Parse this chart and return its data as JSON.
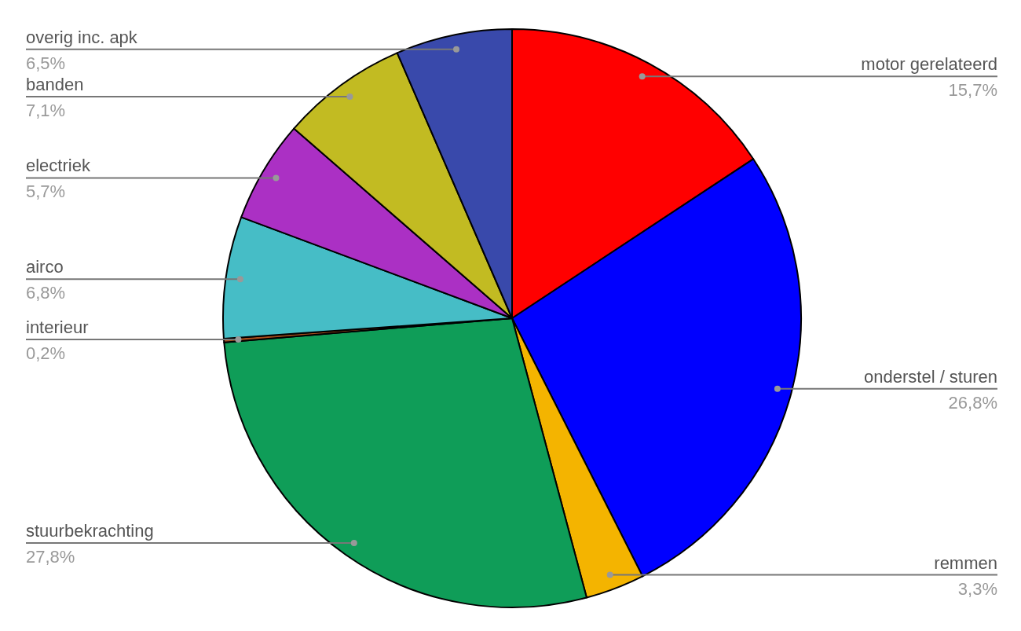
{
  "chart_data": {
    "type": "pie",
    "categories": [
      "motor gerelateerd",
      "onderstel / sturen",
      "remmen",
      "stuurbekrachting",
      "interieur",
      "airco",
      "electriek",
      "banden",
      "overig inc. apk"
    ],
    "values": [
      15.7,
      26.8,
      3.3,
      27.8,
      0.2,
      6.8,
      5.7,
      7.1,
      6.5
    ],
    "value_labels": [
      "15,7%",
      "26,8%",
      "3,3%",
      "27,8%",
      "0,2%",
      "6,8%",
      "5,7%",
      "7,1%",
      "6,5%"
    ],
    "colors": [
      "#ff0000",
      "#0000ff",
      "#f4b400",
      "#0f9d58",
      "#a64d1c",
      "#46bdc6",
      "#ab30c4",
      "#c2bb22",
      "#3949ab"
    ]
  }
}
